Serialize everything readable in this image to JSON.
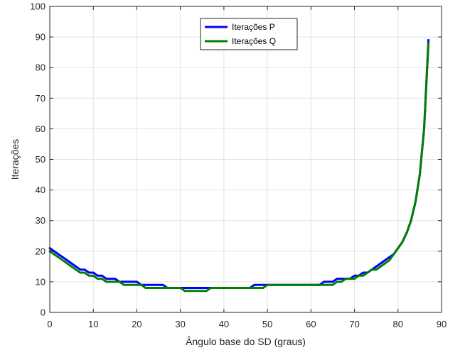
{
  "chart_data": {
    "type": "line",
    "title": "",
    "xlabel": "Ângulo base do SD (graus)",
    "ylabel": "Iterações",
    "xlim": [
      0,
      90
    ],
    "ylim": [
      0,
      100
    ],
    "xticks": [
      0,
      10,
      20,
      30,
      40,
      50,
      60,
      70,
      80,
      90
    ],
    "yticks": [
      0,
      10,
      20,
      30,
      40,
      50,
      60,
      70,
      80,
      90,
      100
    ],
    "grid": true,
    "legend_position": "top-center",
    "series": [
      {
        "name": "Iterações P",
        "color": "#0000ff",
        "x": [
          0,
          1,
          2,
          3,
          4,
          5,
          6,
          7,
          8,
          9,
          10,
          11,
          12,
          13,
          14,
          15,
          16,
          17,
          18,
          19,
          20,
          21,
          22,
          23,
          24,
          25,
          26,
          27,
          28,
          29,
          30,
          31,
          32,
          33,
          34,
          35,
          36,
          37,
          38,
          39,
          40,
          41,
          42,
          43,
          44,
          45,
          46,
          47,
          48,
          49,
          50,
          51,
          52,
          53,
          54,
          55,
          56,
          57,
          58,
          59,
          60,
          61,
          62,
          63,
          64,
          65,
          66,
          67,
          68,
          69,
          70,
          71,
          72,
          73,
          74,
          75,
          76,
          77,
          78,
          79,
          80,
          81,
          82,
          83,
          84,
          85,
          86,
          87
        ],
        "y": [
          21,
          20,
          19,
          18,
          17,
          16,
          15,
          14,
          14,
          13,
          13,
          12,
          12,
          11,
          11,
          11,
          10,
          10,
          10,
          10,
          10,
          9,
          9,
          9,
          9,
          9,
          9,
          8,
          8,
          8,
          8,
          8,
          8,
          8,
          8,
          8,
          8,
          8,
          8,
          8,
          8,
          8,
          8,
          8,
          8,
          8,
          8,
          9,
          9,
          9,
          9,
          9,
          9,
          9,
          9,
          9,
          9,
          9,
          9,
          9,
          9,
          9,
          9,
          10,
          10,
          10,
          11,
          11,
          11,
          11,
          12,
          12,
          13,
          13,
          14,
          15,
          16,
          17,
          18,
          19,
          21,
          23,
          26,
          30,
          36,
          45,
          60,
          89
        ]
      },
      {
        "name": "Iterações Q",
        "color": "#008000",
        "x": [
          0,
          1,
          2,
          3,
          4,
          5,
          6,
          7,
          8,
          9,
          10,
          11,
          12,
          13,
          14,
          15,
          16,
          17,
          18,
          19,
          20,
          21,
          22,
          23,
          24,
          25,
          26,
          27,
          28,
          29,
          30,
          31,
          32,
          33,
          34,
          35,
          36,
          37,
          38,
          39,
          40,
          41,
          42,
          43,
          44,
          45,
          46,
          47,
          48,
          49,
          50,
          51,
          52,
          53,
          54,
          55,
          56,
          57,
          58,
          59,
          60,
          61,
          62,
          63,
          64,
          65,
          66,
          67,
          68,
          69,
          70,
          71,
          72,
          73,
          74,
          75,
          76,
          77,
          78,
          79,
          80,
          81,
          82,
          83,
          84,
          85,
          86,
          87
        ],
        "y": [
          20,
          19,
          18,
          17,
          16,
          15,
          14,
          13,
          13,
          12,
          12,
          11,
          11,
          10,
          10,
          10,
          10,
          9,
          9,
          9,
          9,
          9,
          8,
          8,
          8,
          8,
          8,
          8,
          8,
          8,
          8,
          7,
          7,
          7,
          7,
          7,
          7,
          8,
          8,
          8,
          8,
          8,
          8,
          8,
          8,
          8,
          8,
          8,
          8,
          8,
          9,
          9,
          9,
          9,
          9,
          9,
          9,
          9,
          9,
          9,
          9,
          9,
          9,
          9,
          9,
          9,
          10,
          10,
          11,
          11,
          11,
          12,
          12,
          13,
          14,
          14,
          15,
          16,
          17,
          19,
          21,
          23,
          26,
          30,
          36,
          45,
          60,
          88
        ]
      }
    ]
  }
}
